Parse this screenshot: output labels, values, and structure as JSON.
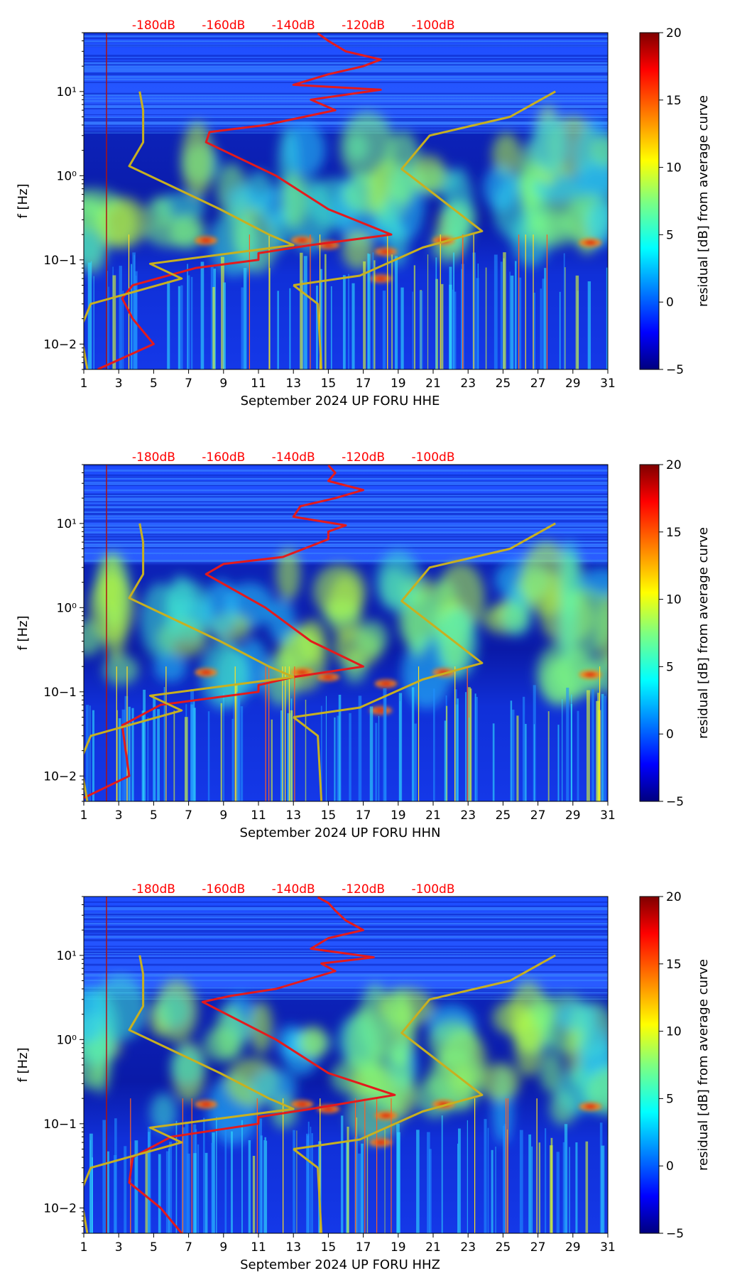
{
  "colors": {
    "red_curve": "#e41a1c",
    "model_curve": "#c8b020",
    "db_label": "#ff0000",
    "background_blue": "#1a3cff"
  },
  "chart_data": [
    {
      "type": "heatmap",
      "title": "",
      "xlabel": "September 2024 UP FORU  HHE",
      "ylabel": "f [Hz]",
      "x_ticks": [
        "1",
        "3",
        "5",
        "7",
        "9",
        "11",
        "13",
        "15",
        "17",
        "19",
        "21",
        "23",
        "25",
        "27",
        "29",
        "31"
      ],
      "xlim": [
        1,
        31
      ],
      "y_ticks": [
        "10−2",
        "10−1",
        "10⁰",
        "10¹"
      ],
      "ylim": [
        0.005,
        50
      ],
      "y_scale": "log",
      "top_labels": [
        "-180dB",
        "-160dB",
        "-140dB",
        "-120dB",
        "-100dB"
      ],
      "top_label_values": [
        -180,
        -160,
        -140,
        -120,
        -100
      ],
      "colorbar": {
        "label": "residual [dB] from average curve",
        "ticks": [
          "20",
          "15",
          "10",
          "5",
          "0",
          "−5"
        ],
        "range": [
          -5,
          20
        ]
      },
      "series": [
        {
          "name": "red curve (dB scale)",
          "points": [
            [
              -196,
              0.00502
            ],
            [
              -180,
              0.01
            ],
            [
              -186,
              0.02
            ],
            [
              -189,
              0.035
            ],
            [
              -186,
              0.05
            ],
            [
              -168,
              0.08
            ],
            [
              -150,
              0.1
            ],
            [
              -150,
              0.12
            ],
            [
              -135,
              0.15
            ],
            [
              -112,
              0.2
            ],
            [
              -130,
              0.4
            ],
            [
              -145,
              1.0
            ],
            [
              -165,
              2.5
            ],
            [
              -164,
              3.3
            ],
            [
              -148,
              4.0
            ],
            [
              -128,
              6.0
            ],
            [
              -135,
              8.0
            ],
            [
              -115,
              10.5
            ],
            [
              -140,
              12.0
            ],
            [
              -130,
              16.0
            ],
            [
              -120,
              20.0
            ],
            [
              -115,
              24.0
            ],
            [
              -125,
              30.0
            ],
            [
              -130,
              40.0
            ],
            [
              -133,
              49.0
            ]
          ]
        },
        {
          "name": "yellow reference curve (dB scale)",
          "points": [
            [
              -199,
              0.00502
            ],
            [
              -201,
              0.015
            ],
            [
              -198,
              0.03
            ],
            [
              -172,
              0.06
            ],
            [
              -181,
              0.09
            ],
            [
              -140,
              0.15
            ],
            [
              -147,
              0.2
            ],
            [
              -161,
              0.4
            ],
            [
              -187,
              1.3
            ],
            [
              -183,
              2.5
            ],
            [
              -183,
              6.0
            ],
            [
              -184,
              10.0
            ]
          ]
        },
        {
          "name": "yellow curve right branch (dB scale)",
          "points": [
            [
              -140,
              0.05
            ],
            [
              -121,
              0.065
            ],
            [
              -103,
              0.14
            ],
            [
              -86,
              0.22
            ],
            [
              -109,
              1.2
            ],
            [
              -101,
              3.0
            ],
            [
              -78,
              5.0
            ],
            [
              -65,
              10.0
            ]
          ]
        },
        {
          "name": "yellow curve lower branch (dB scale)",
          "points": [
            [
              -140,
              0.05
            ],
            [
              -133,
              0.03
            ],
            [
              -132,
              0.00502
            ]
          ]
        }
      ]
    },
    {
      "type": "heatmap",
      "title": "",
      "xlabel": "September 2024 UP FORU  HHN",
      "ylabel": "f [Hz]",
      "x_ticks": [
        "1",
        "3",
        "5",
        "7",
        "9",
        "11",
        "13",
        "15",
        "17",
        "19",
        "21",
        "23",
        "25",
        "27",
        "29",
        "31"
      ],
      "xlim": [
        1,
        31
      ],
      "y_ticks": [
        "10−2",
        "10−1",
        "10⁰",
        "10¹"
      ],
      "ylim": [
        0.005,
        50
      ],
      "y_scale": "log",
      "top_labels": [
        "-180dB",
        "-160dB",
        "-140dB",
        "-120dB",
        "-100dB"
      ],
      "top_label_values": [
        -180,
        -160,
        -140,
        -120,
        -100
      ],
      "colorbar": {
        "label": "residual [dB] from average curve",
        "ticks": [
          "20",
          "15",
          "10",
          "5",
          "0",
          "−5"
        ],
        "range": [
          -5,
          20
        ]
      },
      "series": [
        {
          "name": "red curve (dB scale)",
          "points": [
            [
              -202,
              0.00502
            ],
            [
              -187,
              0.01
            ],
            [
              -188,
              0.02
            ],
            [
              -189,
              0.04
            ],
            [
              -178,
              0.07
            ],
            [
              -150,
              0.1
            ],
            [
              -150,
              0.12
            ],
            [
              -140,
              0.15
            ],
            [
              -120,
              0.2
            ],
            [
              -135,
              0.4
            ],
            [
              -148,
              1.0
            ],
            [
              -165,
              2.5
            ],
            [
              -160,
              3.3
            ],
            [
              -143,
              4.0
            ],
            [
              -130,
              6.5
            ],
            [
              -130,
              8.0
            ],
            [
              -125,
              9.5
            ],
            [
              -140,
              12.0
            ],
            [
              -138,
              16.0
            ],
            [
              -128,
              20.0
            ],
            [
              -120,
              25.0
            ],
            [
              -130,
              32.0
            ],
            [
              -128,
              40.0
            ],
            [
              -130,
              49.0
            ]
          ]
        },
        {
          "name": "yellow reference curve (dB scale)",
          "points": [
            [
              -199,
              0.00502
            ],
            [
              -201,
              0.015
            ],
            [
              -198,
              0.03
            ],
            [
              -172,
              0.06
            ],
            [
              -181,
              0.09
            ],
            [
              -140,
              0.15
            ],
            [
              -147,
              0.2
            ],
            [
              -161,
              0.4
            ],
            [
              -187,
              1.3
            ],
            [
              -183,
              2.5
            ],
            [
              -183,
              6.0
            ],
            [
              -184,
              10.0
            ]
          ]
        },
        {
          "name": "yellow curve right branch (dB scale)",
          "points": [
            [
              -140,
              0.05
            ],
            [
              -121,
              0.065
            ],
            [
              -103,
              0.14
            ],
            [
              -86,
              0.22
            ],
            [
              -109,
              1.2
            ],
            [
              -101,
              3.0
            ],
            [
              -78,
              5.0
            ],
            [
              -65,
              10.0
            ]
          ]
        },
        {
          "name": "yellow curve lower branch (dB scale)",
          "points": [
            [
              -140,
              0.05
            ],
            [
              -133,
              0.03
            ],
            [
              -132,
              0.00502
            ]
          ]
        }
      ]
    },
    {
      "type": "heatmap",
      "title": "",
      "xlabel": "September 2024 UP FORU  HHZ",
      "ylabel": "f [Hz]",
      "x_ticks": [
        "1",
        "3",
        "5",
        "7",
        "9",
        "11",
        "13",
        "15",
        "17",
        "19",
        "21",
        "23",
        "25",
        "27",
        "29",
        "31"
      ],
      "xlim": [
        1,
        31
      ],
      "y_ticks": [
        "10−2",
        "10−1",
        "10⁰",
        "10¹"
      ],
      "ylim": [
        0.005,
        50
      ],
      "y_scale": "log",
      "top_labels": [
        "-180dB",
        "-160dB",
        "-140dB",
        "-120dB",
        "-100dB"
      ],
      "top_label_values": [
        -180,
        -160,
        -140,
        -120,
        -100
      ],
      "colorbar": {
        "label": "residual [dB] from average curve",
        "ticks": [
          "20",
          "15",
          "10",
          "5",
          "0",
          "−5"
        ],
        "range": [
          -5,
          20
        ]
      },
      "series": [
        {
          "name": "red curve (dB scale)",
          "points": [
            [
              -172,
              0.00502
            ],
            [
              -178,
              0.01
            ],
            [
              -187,
              0.02
            ],
            [
              -186,
              0.04
            ],
            [
              -175,
              0.07
            ],
            [
              -150,
              0.1
            ],
            [
              -150,
              0.12
            ],
            [
              -135,
              0.15
            ],
            [
              -111,
              0.22
            ],
            [
              -130,
              0.4
            ],
            [
              -145,
              1.0
            ],
            [
              -166,
              2.8
            ],
            [
              -158,
              3.3
            ],
            [
              -145,
              4.0
            ],
            [
              -128,
              6.5
            ],
            [
              -132,
              8.0
            ],
            [
              -117,
              9.5
            ],
            [
              -135,
              12.0
            ],
            [
              -130,
              16.0
            ],
            [
              -120,
              20.0
            ],
            [
              -125,
              26.0
            ],
            [
              -128,
              34.0
            ],
            [
              -130,
              42.0
            ],
            [
              -133,
              49.0
            ]
          ]
        },
        {
          "name": "yellow reference curve (dB scale)",
          "points": [
            [
              -199,
              0.00502
            ],
            [
              -201,
              0.015
            ],
            [
              -198,
              0.03
            ],
            [
              -172,
              0.06
            ],
            [
              -181,
              0.09
            ],
            [
              -140,
              0.15
            ],
            [
              -147,
              0.2
            ],
            [
              -161,
              0.4
            ],
            [
              -187,
              1.3
            ],
            [
              -183,
              2.5
            ],
            [
              -183,
              6.0
            ],
            [
              -184,
              10.0
            ]
          ]
        },
        {
          "name": "yellow curve right branch (dB scale)",
          "points": [
            [
              -140,
              0.05
            ],
            [
              -121,
              0.065
            ],
            [
              -103,
              0.14
            ],
            [
              -86,
              0.22
            ],
            [
              -109,
              1.2
            ],
            [
              -101,
              3.0
            ],
            [
              -78,
              5.0
            ],
            [
              -65,
              10.0
            ]
          ]
        },
        {
          "name": "yellow curve lower branch (dB scale)",
          "points": [
            [
              -140,
              0.05
            ],
            [
              -133,
              0.03
            ],
            [
              -132,
              0.00502
            ]
          ]
        }
      ]
    }
  ]
}
